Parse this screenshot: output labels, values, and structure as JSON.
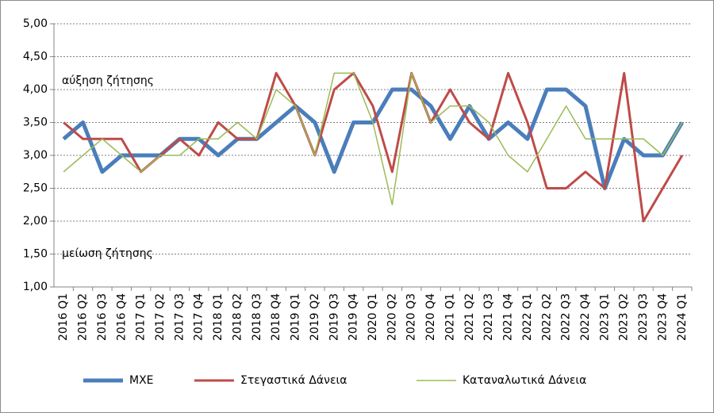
{
  "chart_data": {
    "type": "line",
    "categories": [
      "2016 Q1",
      "2016 Q2",
      "2016 Q3",
      "2016 Q4",
      "2017 Q1",
      "2017 Q2",
      "2017 Q3",
      "2017 Q4",
      "2018 Q1",
      "2018 Q2",
      "2018 Q3",
      "2018 Q4",
      "2019 Q1",
      "2019 Q2",
      "2019 Q3",
      "2019 Q4",
      "2020 Q1",
      "2020 Q2",
      "2020 Q3",
      "2020 Q4",
      "2021 Q1",
      "2021 Q2",
      "2021 Q3",
      "2021 Q4",
      "2022 Q1",
      "2022 Q2",
      "2022 Q3",
      "2022 Q4",
      "2023 Q1",
      "2023 Q2",
      "2023 Q3",
      "2023 Q4",
      "2024 Q1"
    ],
    "series": [
      {
        "name": "ΜΧΕ",
        "color": "#4a7ebb",
        "values": [
          3.25,
          3.5,
          2.75,
          3.0,
          3.0,
          3.0,
          3.25,
          3.25,
          3.0,
          3.25,
          3.25,
          3.5,
          3.75,
          3.5,
          2.75,
          3.5,
          3.5,
          4.0,
          4.0,
          3.75,
          3.25,
          3.75,
          3.25,
          3.5,
          3.25,
          4.0,
          4.0,
          3.75,
          2.5,
          3.25,
          3.0,
          3.0,
          3.5
        ]
      },
      {
        "name": "Στεγαστικά Δάνεια",
        "color": "#be4b48",
        "values": [
          3.5,
          3.25,
          3.25,
          3.25,
          2.75,
          3.0,
          3.25,
          3.0,
          3.5,
          3.25,
          3.25,
          4.25,
          3.75,
          3.0,
          4.0,
          4.25,
          3.75,
          2.75,
          4.25,
          3.5,
          4.0,
          3.5,
          3.25,
          4.25,
          3.5,
          2.5,
          2.5,
          2.75,
          2.5,
          4.25,
          2.0,
          2.5,
          3.0
        ]
      },
      {
        "name": "Καταναλωτικά Δάνεια",
        "color": "#9bbb59",
        "values": [
          2.75,
          3.0,
          3.25,
          3.0,
          2.75,
          3.0,
          3.0,
          3.25,
          3.25,
          3.5,
          3.25,
          4.0,
          3.75,
          3.0,
          4.25,
          4.25,
          3.5,
          2.25,
          4.25,
          3.5,
          3.75,
          3.75,
          3.5,
          3.0,
          2.75,
          3.25,
          3.75,
          3.25,
          3.25,
          3.25,
          3.25,
          3.0,
          3.5
        ]
      }
    ],
    "annotations": [
      "αύξηση ζήτησης",
      "μείωση ζήτησης"
    ],
    "ylim": [
      1,
      5
    ],
    "yticks": [
      {
        "value": 1,
        "label": "1,00"
      },
      {
        "value": 1.5,
        "label": "1,50"
      },
      {
        "value": 2,
        "label": "2,00"
      },
      {
        "value": 2.5,
        "label": "2,50"
      },
      {
        "value": 3,
        "label": "3,00"
      },
      {
        "value": 3.5,
        "label": "3,50"
      },
      {
        "value": 4,
        "label": "4,00"
      },
      {
        "value": 4.5,
        "label": "4,50"
      },
      {
        "value": 5,
        "label": "5,00"
      }
    ],
    "grid": true,
    "legend": "bottom"
  }
}
